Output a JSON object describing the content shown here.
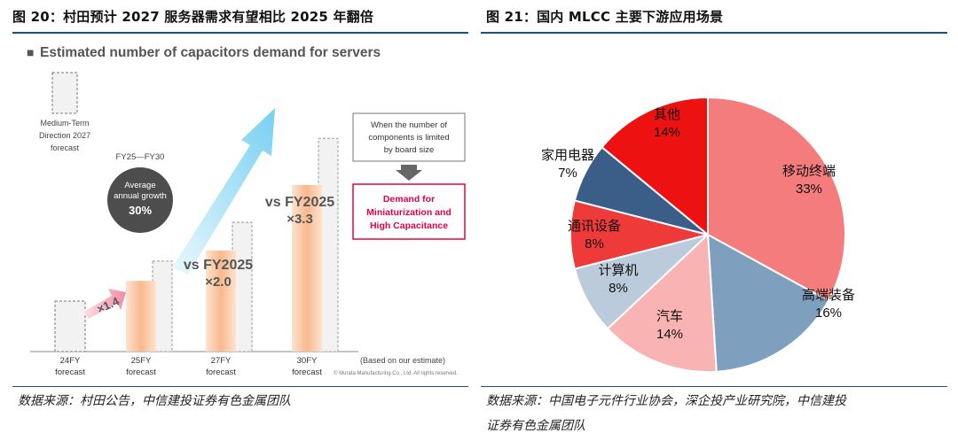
{
  "left": {
    "figure_title": "图 20：村田预计 2027 服务器需求有望相比 2025 年翻倍",
    "source": "数据来源：村田公告，中信建投证券有色金属团队",
    "image": {
      "heading_marker": "■",
      "heading": "Estimated number of capacitors demand for servers",
      "medium_term_label": [
        "Medium-Term",
        "Direction 2027",
        "forecast"
      ],
      "growth_range": "FY25—FY30",
      "growth_label": [
        "Average",
        "annual growth"
      ],
      "growth_value": "30%",
      "mult_1": "×1.4",
      "mult_2": [
        "vs FY2025",
        "×2.0"
      ],
      "mult_3": [
        "vs FY2025",
        "×3.3"
      ],
      "callout": [
        "When the number of",
        "components is limited",
        "by board size"
      ],
      "demand_box": [
        "Demand for",
        "Miniaturization and",
        "High Capacitance"
      ],
      "estimate_note": "(Based on our estimate)",
      "copyright": "© Murata Manufacturing Co., Ltd. All rights reserved.",
      "bars": [
        {
          "label": [
            "24FY",
            "forecast"
          ],
          "relative": 1.0
        },
        {
          "label": [
            "25FY",
            "forecast"
          ],
          "relative": 1.4
        },
        {
          "label": [
            "27FY",
            "forecast"
          ],
          "relative": 2.0
        },
        {
          "label": [
            "30FY",
            "forecast"
          ],
          "relative": 3.3
        }
      ],
      "colors": {
        "bar": "#f9b98e",
        "bar_light": "#fde3cf",
        "arrow": "#8fd7f2",
        "accent_red": "#e0004d",
        "dark_circle": "#4d4d4d"
      }
    }
  },
  "right": {
    "figure_title": "图 21：国内 MLCC 主要下游应用场景",
    "source_lines": [
      "数据来源：中国电子元件行业协会，深企投产业研究院，中信建投",
      "证券有色金属团队"
    ]
  },
  "chart_data": {
    "type": "pie",
    "title": "",
    "slices": [
      {
        "label": "移动终端",
        "value": 33,
        "value_label": "33%",
        "color": "#f47c7c"
      },
      {
        "label": "高端装备",
        "value": 16,
        "value_label": "16%",
        "color": "#7f9fbf"
      },
      {
        "label": "汽车",
        "value": 14,
        "value_label": "14%",
        "color": "#f9b3b3"
      },
      {
        "label": "计算机",
        "value": 8,
        "value_label": "8%",
        "color": "#bccbdb"
      },
      {
        "label": "通讯设备",
        "value": 8,
        "value_label": "8%",
        "color": "#ef3a3a"
      },
      {
        "label": "家用电器",
        "value": 7,
        "value_label": "7%",
        "color": "#3a5e87"
      },
      {
        "label": "其他",
        "value": 14,
        "value_label": "14%",
        "color": "#ee1111"
      }
    ]
  }
}
